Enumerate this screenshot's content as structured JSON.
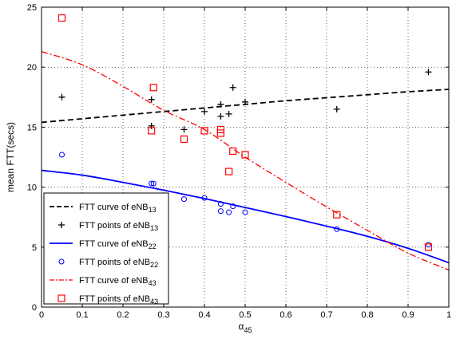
{
  "chart_data": {
    "type": "scatter",
    "xlabel": {
      "base": "α",
      "sub": "45"
    },
    "ylabel": "mean FTT(secs)",
    "xlim": [
      0,
      1
    ],
    "ylim": [
      0,
      25
    ],
    "grid": true,
    "legend_position": "bottom-left",
    "x_ticks": [
      "0",
      "0.1",
      "0.2",
      "0.3",
      "0.4",
      "0.5",
      "0.6",
      "0.7",
      "0.8",
      "0.9",
      "1"
    ],
    "y_ticks": [
      "0",
      "5",
      "10",
      "15",
      "20",
      "25"
    ],
    "series": [
      {
        "name": "FTT curve of eNB",
        "sub": "13",
        "kind": "line",
        "color": "#000000",
        "dash": "dashed",
        "x": [
          0,
          0.1,
          0.2,
          0.3,
          0.4,
          0.5,
          0.6,
          0.7,
          0.8,
          0.9,
          1.0
        ],
        "y": [
          15.4,
          15.7,
          16.0,
          16.3,
          16.6,
          16.9,
          17.2,
          17.45,
          17.7,
          17.95,
          18.15
        ]
      },
      {
        "name": "FTT points of eNB",
        "sub": "13",
        "kind": "points",
        "marker": "plus",
        "color": "#000000",
        "x": [
          0.05,
          0.27,
          0.27,
          0.35,
          0.4,
          0.44,
          0.44,
          0.46,
          0.47,
          0.5,
          0.725,
          0.95
        ],
        "y": [
          17.5,
          17.3,
          15.1,
          14.8,
          16.3,
          16.9,
          15.9,
          16.1,
          18.3,
          17.1,
          16.5,
          19.6
        ]
      },
      {
        "name": "FTT curve of eNB",
        "sub": "22",
        "kind": "line",
        "color": "#0000ff",
        "dash": "solid",
        "x": [
          0,
          0.1,
          0.2,
          0.3,
          0.4,
          0.5,
          0.6,
          0.7,
          0.8,
          0.9,
          1.0
        ],
        "y": [
          11.4,
          11.0,
          10.4,
          9.75,
          9.05,
          8.3,
          7.55,
          6.75,
          5.9,
          4.9,
          3.7
        ]
      },
      {
        "name": "FTT points of eNB",
        "sub": "22",
        "kind": "points",
        "marker": "circle",
        "color": "#0000ff",
        "x": [
          0.05,
          0.27,
          0.275,
          0.35,
          0.4,
          0.44,
          0.44,
          0.46,
          0.47,
          0.5,
          0.725,
          0.95
        ],
        "y": [
          12.7,
          10.3,
          10.3,
          9.0,
          9.1,
          8.6,
          8.0,
          7.9,
          8.4,
          7.9,
          6.5,
          5.2
        ]
      },
      {
        "name": "FTT curve of eNB",
        "sub": "43",
        "kind": "line",
        "color": "#ff0000",
        "dash": "dashdot",
        "x": [
          0,
          0.1,
          0.2,
          0.3,
          0.4,
          0.5,
          0.6,
          0.7,
          0.8,
          0.9,
          1.0
        ],
        "y": [
          21.3,
          20.2,
          18.4,
          16.4,
          14.8,
          12.5,
          10.4,
          8.35,
          6.4,
          4.5,
          3.1
        ]
      },
      {
        "name": "FTT points of eNB",
        "sub": "43",
        "kind": "points",
        "marker": "square",
        "color": "#ff0000",
        "x": [
          0.05,
          0.27,
          0.275,
          0.35,
          0.4,
          0.44,
          0.44,
          0.46,
          0.47,
          0.5,
          0.725,
          0.95
        ],
        "y": [
          24.1,
          14.7,
          18.3,
          14.0,
          14.7,
          14.5,
          14.8,
          11.3,
          13.0,
          12.7,
          7.7,
          5.0
        ]
      }
    ]
  }
}
